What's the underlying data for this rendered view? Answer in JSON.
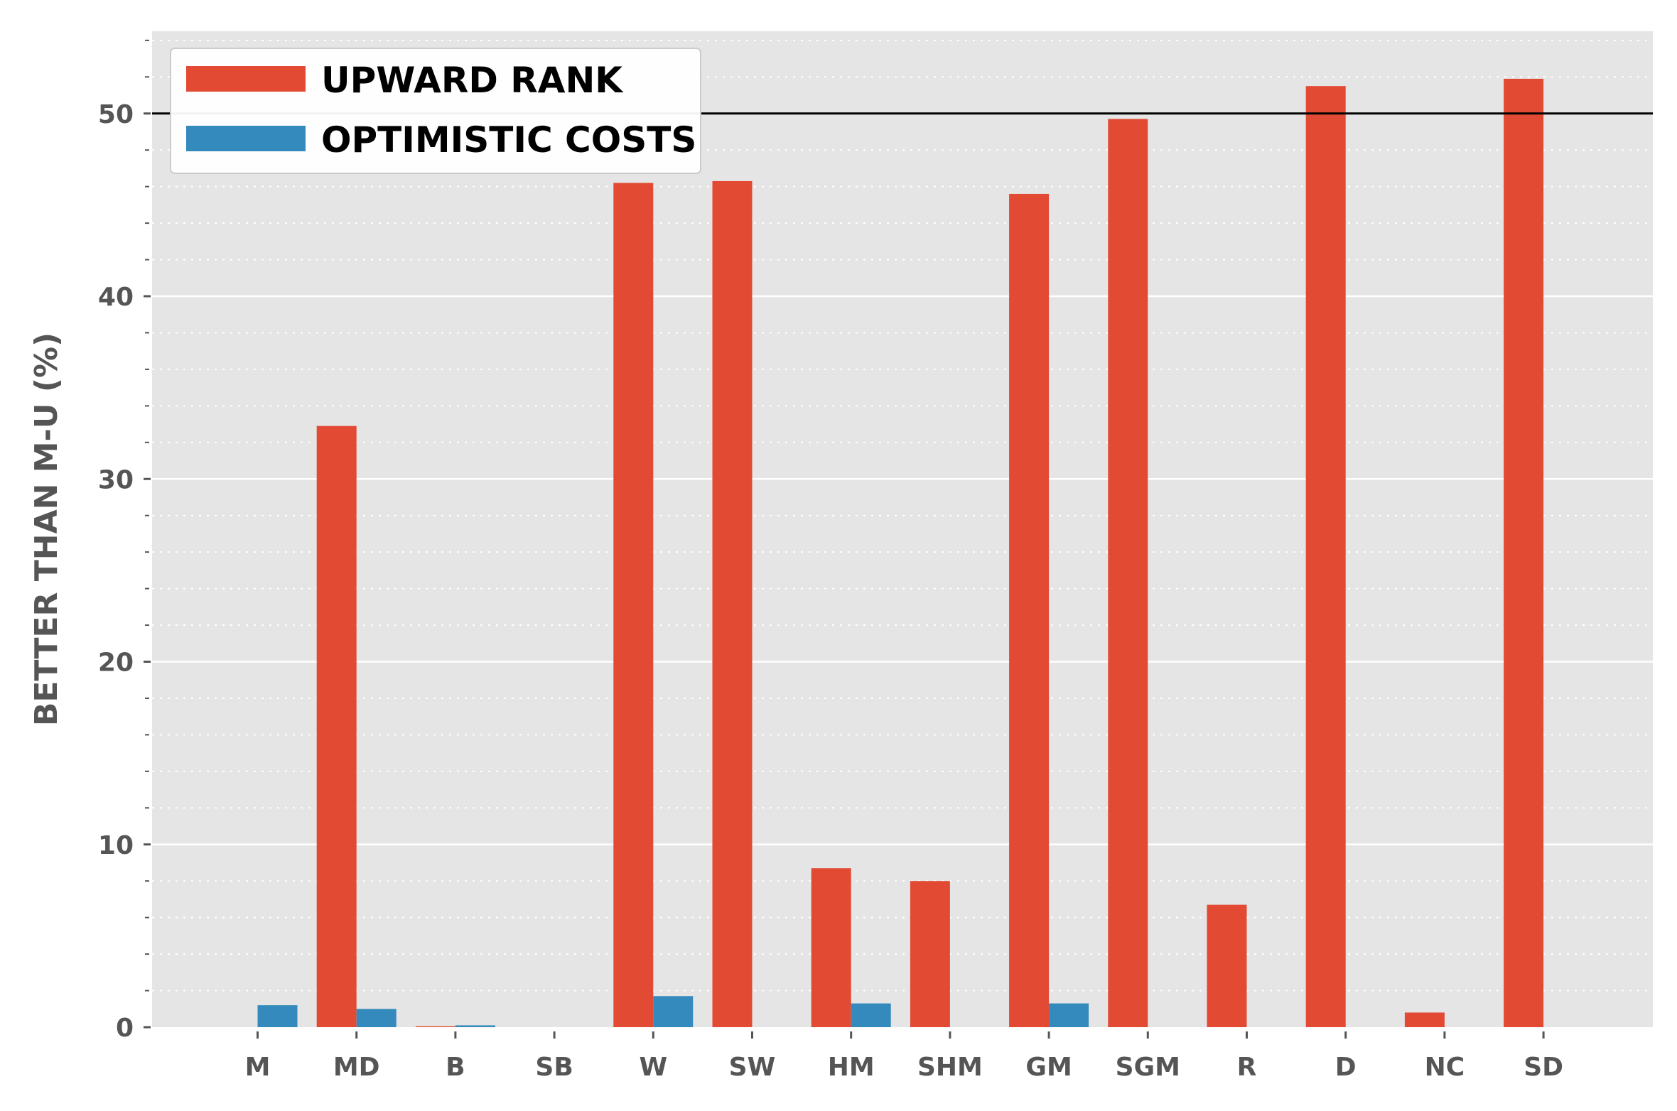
{
  "chart_data": {
    "type": "bar",
    "title": "",
    "xlabel": "",
    "ylabel": "BETTER THAN M-U (%)",
    "categories": [
      "M",
      "MD",
      "B",
      "SB",
      "W",
      "SW",
      "HM",
      "SHM",
      "GM",
      "SGM",
      "R",
      "D",
      "NC",
      "SD"
    ],
    "series": [
      {
        "name": "UPWARD RANK",
        "color": "#e24a33",
        "values": [
          0,
          32.9,
          0.05,
          0,
          46.2,
          46.3,
          8.7,
          8.0,
          45.6,
          49.7,
          6.7,
          51.5,
          0.8,
          51.9
        ]
      },
      {
        "name": "OPTIMISTIC COSTS",
        "color": "#348abd",
        "values": [
          1.2,
          1.0,
          0.1,
          0,
          1.7,
          0,
          1.3,
          0,
          1.3,
          0,
          0,
          0,
          0,
          0
        ]
      }
    ],
    "ylim": [
      0,
      54.5
    ],
    "yticks": [
      "0",
      "10",
      "20",
      "30",
      "40",
      "50"
    ],
    "reference_line": 50,
    "grid": true,
    "minor_grid": true,
    "legend": "top-left",
    "background": "#e5e5e5"
  }
}
